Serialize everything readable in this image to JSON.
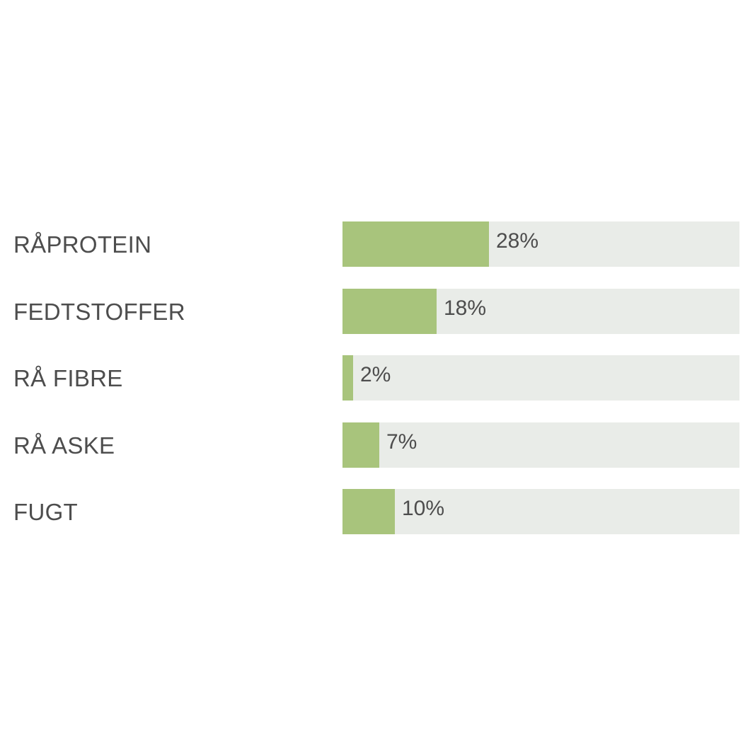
{
  "chart_data": {
    "type": "bar",
    "orientation": "horizontal",
    "categories": [
      "RÅPROTEIN",
      "FEDTSTOFFER",
      "RÅ FIBRE",
      "RÅ ASKE",
      "FUGT"
    ],
    "values": [
      28,
      18,
      2,
      7,
      10
    ],
    "value_labels": [
      "28%",
      "18%",
      "2%",
      "7%",
      "10%"
    ],
    "xlim": [
      0,
      76
    ],
    "unit": "%",
    "grid": false,
    "legend": "none",
    "title": "",
    "xlabel": "",
    "ylabel": ""
  },
  "colors": {
    "bar_fill": "#a8c47c",
    "track": "#e9ece8",
    "text": "#4d4d4d",
    "background": "#ffffff"
  }
}
